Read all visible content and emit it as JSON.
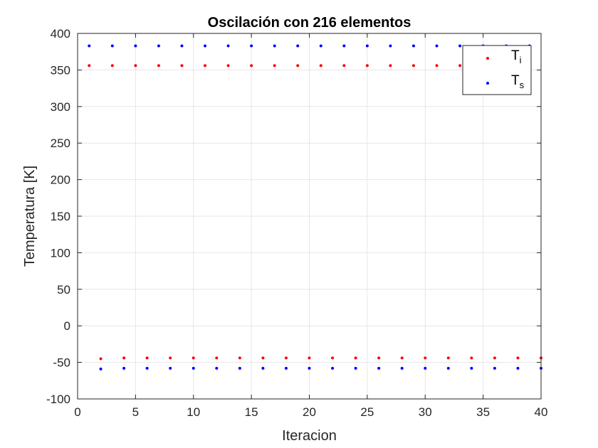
{
  "chart_data": {
    "type": "scatter",
    "title": "Oscilación con 216 elementos",
    "xlabel": "Iteracion",
    "ylabel": "Temperatura [K]",
    "xlim": [
      0,
      40
    ],
    "ylim": [
      -100,
      400
    ],
    "xticks": [
      0,
      5,
      10,
      15,
      20,
      25,
      30,
      35,
      40
    ],
    "yticks": [
      -100,
      -50,
      0,
      50,
      100,
      150,
      200,
      250,
      300,
      350,
      400
    ],
    "grid": true,
    "legend_position": "top-right",
    "series": [
      {
        "name": "T_i",
        "label_main": "T",
        "label_sub": "i",
        "color": "#ff0000",
        "points": [
          [
            1,
            356
          ],
          [
            2,
            -45
          ],
          [
            3,
            356
          ],
          [
            4,
            -44
          ],
          [
            5,
            356
          ],
          [
            6,
            -44
          ],
          [
            7,
            356
          ],
          [
            8,
            -44
          ],
          [
            9,
            356
          ],
          [
            10,
            -44
          ],
          [
            11,
            356
          ],
          [
            12,
            -44
          ],
          [
            13,
            356
          ],
          [
            14,
            -44
          ],
          [
            15,
            356
          ],
          [
            16,
            -44
          ],
          [
            17,
            356
          ],
          [
            18,
            -44
          ],
          [
            19,
            356
          ],
          [
            20,
            -44
          ],
          [
            21,
            356
          ],
          [
            22,
            -44
          ],
          [
            23,
            356
          ],
          [
            24,
            -44
          ],
          [
            25,
            356
          ],
          [
            26,
            -44
          ],
          [
            27,
            356
          ],
          [
            28,
            -44
          ],
          [
            29,
            356
          ],
          [
            30,
            -44
          ],
          [
            31,
            356
          ],
          [
            32,
            -44
          ],
          [
            33,
            356
          ],
          [
            34,
            -44
          ],
          [
            35,
            356
          ],
          [
            36,
            -44
          ],
          [
            37,
            356
          ],
          [
            38,
            -44
          ],
          [
            39,
            356
          ],
          [
            40,
            -44
          ]
        ]
      },
      {
        "name": "T_s",
        "label_main": "T",
        "label_sub": "s",
        "color": "#0000ff",
        "points": [
          [
            1,
            383
          ],
          [
            2,
            -59
          ],
          [
            3,
            383
          ],
          [
            4,
            -58
          ],
          [
            5,
            383
          ],
          [
            6,
            -58
          ],
          [
            7,
            383
          ],
          [
            8,
            -58
          ],
          [
            9,
            383
          ],
          [
            10,
            -58
          ],
          [
            11,
            383
          ],
          [
            12,
            -58
          ],
          [
            13,
            383
          ],
          [
            14,
            -58
          ],
          [
            15,
            383
          ],
          [
            16,
            -58
          ],
          [
            17,
            383
          ],
          [
            18,
            -58
          ],
          [
            19,
            383
          ],
          [
            20,
            -58
          ],
          [
            21,
            383
          ],
          [
            22,
            -58
          ],
          [
            23,
            383
          ],
          [
            24,
            -58
          ],
          [
            25,
            383
          ],
          [
            26,
            -58
          ],
          [
            27,
            383
          ],
          [
            28,
            -58
          ],
          [
            29,
            383
          ],
          [
            30,
            -58
          ],
          [
            31,
            383
          ],
          [
            32,
            -58
          ],
          [
            33,
            383
          ],
          [
            34,
            -58
          ],
          [
            35,
            383
          ],
          [
            36,
            -58
          ],
          [
            37,
            383
          ],
          [
            38,
            -58
          ],
          [
            39,
            383
          ],
          [
            40,
            -58
          ]
        ]
      }
    ]
  }
}
